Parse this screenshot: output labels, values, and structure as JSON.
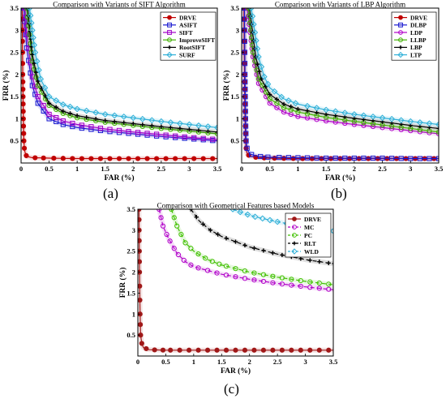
{
  "captions": {
    "a": "(a)",
    "b": "(b)",
    "c": "(c)"
  },
  "chart_data": [
    {
      "id": "a",
      "type": "line",
      "title": "Comparison with Variants of SIFT Algorithm",
      "xlabel": "FAR (%)",
      "ylabel": "FRR (%)",
      "xlim": [
        0,
        3.5
      ],
      "ylim": [
        0,
        3.5
      ],
      "xticks": [
        "0",
        "0.5",
        "1",
        "1.5",
        "2",
        "2.5",
        "3",
        "3.5"
      ],
      "yticks": [
        "0.5",
        "1",
        "1.5",
        "2",
        "2.5",
        "3",
        "3.5"
      ],
      "grid": false,
      "legend_position": "top-right",
      "series": [
        {
          "name": "DRVE",
          "color": "#c00000",
          "marker": "circle",
          "points": [
            [
              0.02,
              3.5
            ],
            [
              0.03,
              2.0
            ],
            [
              0.04,
              1.0
            ],
            [
              0.05,
              0.5
            ],
            [
              0.06,
              0.3
            ],
            [
              0.08,
              0.2
            ],
            [
              0.1,
              0.15
            ],
            [
              0.2,
              0.12
            ],
            [
              0.5,
              0.11
            ],
            [
              1.0,
              0.1
            ],
            [
              1.5,
              0.1
            ],
            [
              2.0,
              0.1
            ],
            [
              2.5,
              0.1
            ],
            [
              3.0,
              0.1
            ],
            [
              3.5,
              0.1
            ]
          ]
        },
        {
          "name": "ASIFT",
          "color": "#1a1ad0",
          "marker": "square",
          "points": [
            [
              0.05,
              3.5
            ],
            [
              0.1,
              2.6
            ],
            [
              0.2,
              1.75
            ],
            [
              0.3,
              1.35
            ],
            [
              0.5,
              1.0
            ],
            [
              0.75,
              0.87
            ],
            [
              1.0,
              0.8
            ],
            [
              1.5,
              0.72
            ],
            [
              2.0,
              0.66
            ],
            [
              2.5,
              0.6
            ],
            [
              3.0,
              0.55
            ],
            [
              3.5,
              0.5
            ]
          ]
        },
        {
          "name": "SIFT",
          "color": "#a000c8",
          "marker": "square",
          "points": [
            [
              0.07,
              3.5
            ],
            [
              0.1,
              2.9
            ],
            [
              0.2,
              1.95
            ],
            [
              0.3,
              1.5
            ],
            [
              0.5,
              1.1
            ],
            [
              0.75,
              0.95
            ],
            [
              1.0,
              0.87
            ],
            [
              1.5,
              0.77
            ],
            [
              2.0,
              0.7
            ],
            [
              2.5,
              0.64
            ],
            [
              3.0,
              0.58
            ],
            [
              3.5,
              0.53
            ]
          ]
        },
        {
          "name": "ImproveSIFT",
          "color": "#40b000",
          "marker": "circle",
          "points": [
            [
              0.1,
              3.5
            ],
            [
              0.2,
              2.3
            ],
            [
              0.3,
              1.75
            ],
            [
              0.5,
              1.3
            ],
            [
              0.75,
              1.12
            ],
            [
              1.0,
              1.02
            ],
            [
              1.5,
              0.92
            ],
            [
              2.0,
              0.85
            ],
            [
              2.5,
              0.78
            ],
            [
              3.0,
              0.72
            ],
            [
              3.5,
              0.66
            ]
          ]
        },
        {
          "name": "RootSIFT",
          "color": "#000000",
          "marker": "plus",
          "points": [
            [
              0.12,
              3.5
            ],
            [
              0.2,
              2.45
            ],
            [
              0.3,
              1.85
            ],
            [
              0.5,
              1.35
            ],
            [
              0.75,
              1.17
            ],
            [
              1.0,
              1.07
            ],
            [
              1.5,
              0.96
            ],
            [
              2.0,
              0.89
            ],
            [
              2.5,
              0.82
            ],
            [
              3.0,
              0.76
            ],
            [
              3.5,
              0.7
            ]
          ]
        },
        {
          "name": "SURF",
          "color": "#30b0d8",
          "marker": "diamond",
          "points": [
            [
              0.15,
              3.5
            ],
            [
              0.25,
              2.5
            ],
            [
              0.35,
              1.9
            ],
            [
              0.5,
              1.5
            ],
            [
              0.75,
              1.32
            ],
            [
              1.0,
              1.22
            ],
            [
              1.5,
              1.1
            ],
            [
              2.0,
              1.02
            ],
            [
              2.5,
              0.94
            ],
            [
              3.0,
              0.87
            ],
            [
              3.5,
              0.8
            ]
          ]
        }
      ]
    },
    {
      "id": "b",
      "type": "line",
      "title": "Comparison with Variants of LBP Algorithm",
      "xlabel": "FAR (%)",
      "ylabel": "FRR (%)",
      "xlim": [
        0,
        3.5
      ],
      "ylim": [
        0,
        3.5
      ],
      "xticks": [
        "0",
        "0.5",
        "1",
        "1.5",
        "2",
        "2.5",
        "3",
        "3.5"
      ],
      "yticks": [
        "0.5",
        "1",
        "1.5",
        "2",
        "2.5",
        "3",
        "3.5"
      ],
      "grid": false,
      "legend_position": "top-right",
      "series": [
        {
          "name": "DRVE",
          "color": "#c00000",
          "marker": "circle",
          "points": [
            [
              0.04,
              3.5
            ],
            [
              0.05,
              2.0
            ],
            [
              0.06,
              1.0
            ],
            [
              0.07,
              0.5
            ],
            [
              0.08,
              0.3
            ],
            [
              0.1,
              0.2
            ],
            [
              0.15,
              0.15
            ],
            [
              0.3,
              0.12
            ],
            [
              0.5,
              0.11
            ],
            [
              1.0,
              0.1
            ],
            [
              1.5,
              0.1
            ],
            [
              2.0,
              0.1
            ],
            [
              2.5,
              0.1
            ],
            [
              3.0,
              0.1
            ],
            [
              3.5,
              0.1
            ]
          ]
        },
        {
          "name": "DLBP",
          "color": "#1a1ad0",
          "marker": "square",
          "points": [
            [
              0.05,
              3.5
            ],
            [
              0.06,
              2.0
            ],
            [
              0.07,
              1.0
            ],
            [
              0.08,
              0.5
            ],
            [
              0.1,
              0.3
            ],
            [
              0.15,
              0.2
            ],
            [
              0.3,
              0.15
            ],
            [
              0.5,
              0.13
            ],
            [
              1.0,
              0.12
            ],
            [
              1.5,
              0.11
            ],
            [
              2.0,
              0.11
            ],
            [
              2.5,
              0.11
            ],
            [
              3.0,
              0.1
            ],
            [
              3.5,
              0.1
            ]
          ]
        },
        {
          "name": "LDP",
          "color": "#b000c8",
          "marker": "circle",
          "points": [
            [
              0.1,
              3.5
            ],
            [
              0.2,
              2.4
            ],
            [
              0.3,
              1.8
            ],
            [
              0.5,
              1.35
            ],
            [
              0.75,
              1.15
            ],
            [
              1.0,
              1.05
            ],
            [
              1.5,
              0.95
            ],
            [
              2.0,
              0.87
            ],
            [
              2.5,
              0.8
            ],
            [
              3.0,
              0.73
            ],
            [
              3.5,
              0.66
            ]
          ]
        },
        {
          "name": "LLBP",
          "color": "#40b000",
          "marker": "circle",
          "points": [
            [
              0.12,
              3.5
            ],
            [
              0.2,
              2.5
            ],
            [
              0.3,
              1.9
            ],
            [
              0.5,
              1.45
            ],
            [
              0.75,
              1.25
            ],
            [
              1.0,
              1.15
            ],
            [
              1.5,
              1.03
            ],
            [
              2.0,
              0.94
            ],
            [
              2.5,
              0.86
            ],
            [
              3.0,
              0.78
            ],
            [
              3.5,
              0.7
            ]
          ]
        },
        {
          "name": "LBP",
          "color": "#000000",
          "marker": "plus",
          "points": [
            [
              0.14,
              3.5
            ],
            [
              0.25,
              2.4
            ],
            [
              0.35,
              1.9
            ],
            [
              0.5,
              1.55
            ],
            [
              0.75,
              1.33
            ],
            [
              1.0,
              1.22
            ],
            [
              1.5,
              1.1
            ],
            [
              2.0,
              1.01
            ],
            [
              2.5,
              0.93
            ],
            [
              3.0,
              0.85
            ],
            [
              3.5,
              0.78
            ]
          ]
        },
        {
          "name": "LTP",
          "color": "#30b0d8",
          "marker": "diamond",
          "points": [
            [
              0.17,
              3.5
            ],
            [
              0.3,
              2.4
            ],
            [
              0.4,
              1.95
            ],
            [
              0.5,
              1.7
            ],
            [
              0.75,
              1.45
            ],
            [
              1.0,
              1.33
            ],
            [
              1.5,
              1.2
            ],
            [
              2.0,
              1.1
            ],
            [
              2.5,
              1.02
            ],
            [
              3.0,
              0.94
            ],
            [
              3.5,
              0.87
            ]
          ]
        }
      ]
    },
    {
      "id": "c",
      "type": "line",
      "title": "Comparison with Geometrical Features based Models",
      "xlabel": "FAR (%)",
      "ylabel": "FRR (%)",
      "xlim": [
        0,
        3.5
      ],
      "ylim": [
        0,
        3.5
      ],
      "xticks": [
        "0",
        "0.5",
        "1",
        "1.5",
        "2",
        "2.5",
        "3",
        "3.5"
      ],
      "yticks": [
        "0.5",
        "1",
        "1.5",
        "2",
        "2.5",
        "3",
        "3.5"
      ],
      "grid": false,
      "legend_position": "top-right",
      "series": [
        {
          "name": "DRVE",
          "color": "#a01818",
          "marker": "circle",
          "points": [
            [
              0.02,
              3.5
            ],
            [
              0.03,
              2.0
            ],
            [
              0.04,
              1.0
            ],
            [
              0.05,
              0.5
            ],
            [
              0.07,
              0.3
            ],
            [
              0.1,
              0.2
            ],
            [
              0.2,
              0.15
            ],
            [
              0.5,
              0.14
            ],
            [
              1.0,
              0.14
            ],
            [
              1.5,
              0.14
            ],
            [
              2.0,
              0.14
            ],
            [
              2.5,
              0.14
            ],
            [
              3.0,
              0.14
            ],
            [
              3.5,
              0.14
            ]
          ]
        },
        {
          "name": "MC",
          "color": "#b000c8",
          "marker": "circle",
          "points": [
            [
              0.38,
              3.5
            ],
            [
              0.45,
              3.1
            ],
            [
              0.55,
              2.8
            ],
            [
              0.7,
              2.45
            ],
            [
              0.85,
              2.25
            ],
            [
              1.0,
              2.13
            ],
            [
              1.5,
              1.95
            ],
            [
              2.0,
              1.83
            ],
            [
              2.5,
              1.73
            ],
            [
              3.0,
              1.65
            ],
            [
              3.5,
              1.58
            ]
          ]
        },
        {
          "name": "PC",
          "color": "#40c000",
          "marker": "circle",
          "points": [
            [
              0.6,
              3.5
            ],
            [
              0.7,
              3.1
            ],
            [
              0.85,
              2.7
            ],
            [
              1.0,
              2.5
            ],
            [
              1.25,
              2.3
            ],
            [
              1.5,
              2.17
            ],
            [
              2.0,
              2.0
            ],
            [
              2.5,
              1.88
            ],
            [
              3.0,
              1.78
            ],
            [
              3.5,
              1.7
            ]
          ]
        },
        {
          "name": "RLT",
          "color": "#000000",
          "marker": "plus",
          "points": [
            [
              0.95,
              3.5
            ],
            [
              1.1,
              3.22
            ],
            [
              1.3,
              3.0
            ],
            [
              1.5,
              2.85
            ],
            [
              2.0,
              2.6
            ],
            [
              2.5,
              2.43
            ],
            [
              3.0,
              2.3
            ],
            [
              3.5,
              2.2
            ]
          ]
        },
        {
          "name": "WLD",
          "color": "#30b0d8",
          "marker": "diamond",
          "points": [
            [
              1.7,
              3.5
            ],
            [
              1.9,
              3.4
            ],
            [
              2.1,
              3.32
            ],
            [
              2.5,
              3.2
            ],
            [
              3.0,
              3.08
            ],
            [
              3.5,
              2.98
            ]
          ]
        }
      ]
    }
  ]
}
